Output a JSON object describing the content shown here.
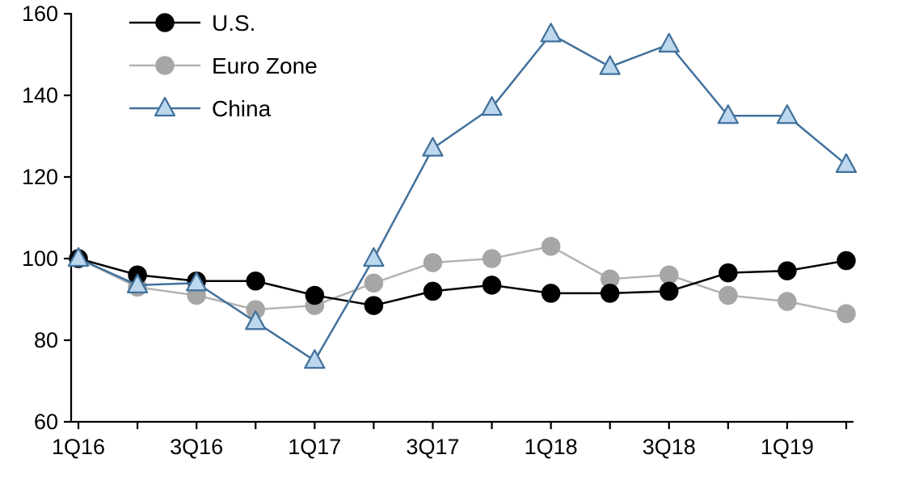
{
  "chart_data": {
    "type": "line",
    "title": "",
    "xlabel": "",
    "ylabel": "",
    "categories": [
      "1Q16",
      "2Q16",
      "3Q16",
      "4Q16",
      "1Q17",
      "2Q17",
      "3Q17",
      "4Q17",
      "1Q18",
      "2Q18",
      "3Q18",
      "4Q18",
      "1Q19",
      "2Q19"
    ],
    "x_tick_labels": [
      "1Q16",
      "3Q16",
      "1Q17",
      "3Q17",
      "1Q18",
      "3Q18",
      "1Q19"
    ],
    "x_label_every": 2,
    "ylim": [
      60,
      160
    ],
    "y_ticks": [
      60,
      80,
      100,
      120,
      140,
      160
    ],
    "grid": false,
    "legend_position": "top-left",
    "series": [
      {
        "name": "U.S.",
        "marker": "circle",
        "line_color": "#000000",
        "marker_fill": "#000000",
        "marker_stroke": "#000000",
        "values": [
          100,
          96,
          94.5,
          94.5,
          91,
          88.5,
          92,
          93.5,
          91.5,
          91.5,
          92,
          96.5,
          97,
          99.5
        ]
      },
      {
        "name": "Euro Zone",
        "marker": "circle",
        "line_color": "#b3b3b3",
        "marker_fill": "#a6a6a6",
        "marker_stroke": "#a6a6a6",
        "values": [
          100,
          93,
          91,
          87.5,
          88.5,
          94,
          99,
          100,
          103,
          95,
          96,
          91,
          89.5,
          86.5
        ]
      },
      {
        "name": "China",
        "marker": "triangle",
        "line_color": "#41719c",
        "marker_fill": "#bdd7ee",
        "marker_stroke": "#41719c",
        "values": [
          100,
          93.5,
          94,
          84.5,
          75,
          100,
          127,
          137,
          155,
          147,
          152.5,
          135,
          135,
          123
        ]
      }
    ]
  }
}
